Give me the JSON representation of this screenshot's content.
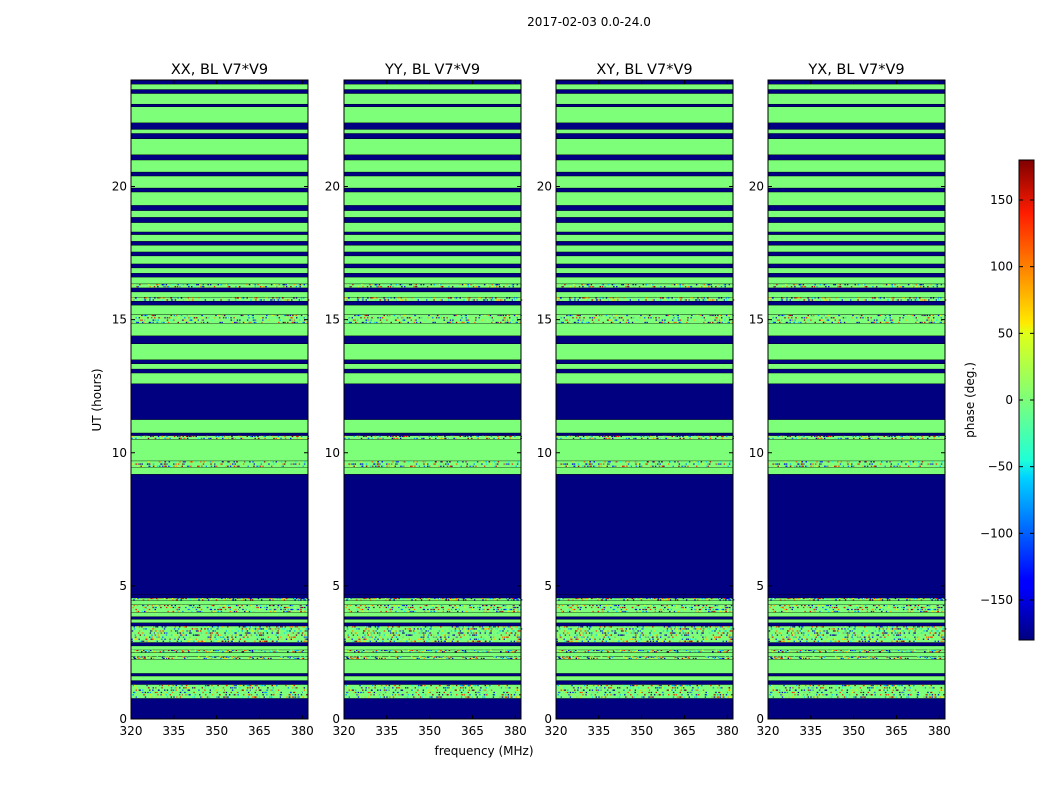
{
  "chart_data": {
    "type": "heatmap",
    "suptitle": "2017-02-03 0.0-24.0",
    "xlabel": "frequency (MHz)",
    "ylabel": "UT (hours)",
    "xlim": [
      320,
      382
    ],
    "ylim": [
      0,
      24
    ],
    "xticks": [
      "320",
      "335",
      "350",
      "365",
      "380"
    ],
    "yticks": [
      "0",
      "5",
      "10",
      "15",
      "20"
    ],
    "panels": [
      {
        "title": "XX, BL V7*V9"
      },
      {
        "title": "YY, BL V7*V9"
      },
      {
        "title": "XY, BL V7*V9"
      },
      {
        "title": "YX, BL V7*V9"
      }
    ],
    "colorbar": {
      "label": "phase (deg.)",
      "range": [
        -180,
        180
      ],
      "colormap": "jet",
      "ticks": [
        "150",
        "100",
        "50",
        "0",
        "−50",
        "−100",
        "−150"
      ]
    },
    "time_bands": [
      {
        "from": 0.0,
        "to": 0.78,
        "state": "flagged"
      },
      {
        "from": 0.78,
        "to": 1.3,
        "state": "noisy"
      },
      {
        "from": 1.3,
        "to": 1.45,
        "state": "flagged"
      },
      {
        "from": 1.45,
        "to": 1.62,
        "state": "zero"
      },
      {
        "from": 1.62,
        "to": 1.72,
        "state": "flagged"
      },
      {
        "from": 1.72,
        "to": 2.25,
        "state": "zero"
      },
      {
        "from": 2.25,
        "to": 2.35,
        "state": "noisy"
      },
      {
        "from": 2.35,
        "to": 2.5,
        "state": "zero"
      },
      {
        "from": 2.5,
        "to": 2.6,
        "state": "noisy"
      },
      {
        "from": 2.6,
        "to": 2.75,
        "state": "zero"
      },
      {
        "from": 2.75,
        "to": 2.88,
        "state": "flagged"
      },
      {
        "from": 2.88,
        "to": 3.5,
        "state": "noisy"
      },
      {
        "from": 3.5,
        "to": 3.62,
        "state": "flagged"
      },
      {
        "from": 3.62,
        "to": 3.75,
        "state": "zero"
      },
      {
        "from": 3.75,
        "to": 3.85,
        "state": "flagged"
      },
      {
        "from": 3.85,
        "to": 4.0,
        "state": "zero"
      },
      {
        "from": 4.0,
        "to": 4.3,
        "state": "noisy"
      },
      {
        "from": 4.3,
        "to": 4.45,
        "state": "zero"
      },
      {
        "from": 4.45,
        "to": 4.55,
        "state": "noisy"
      },
      {
        "from": 4.55,
        "to": 4.68,
        "state": "flagged"
      },
      {
        "from": 4.68,
        "to": 9.2,
        "state": "flagged"
      },
      {
        "from": 9.2,
        "to": 9.45,
        "state": "zero"
      },
      {
        "from": 9.45,
        "to": 9.7,
        "state": "noisy"
      },
      {
        "from": 9.7,
        "to": 10.5,
        "state": "zero"
      },
      {
        "from": 10.5,
        "to": 10.65,
        "state": "noisy"
      },
      {
        "from": 10.65,
        "to": 10.75,
        "state": "flagged"
      },
      {
        "from": 10.75,
        "to": 11.25,
        "state": "zero"
      },
      {
        "from": 11.25,
        "to": 12.6,
        "state": "flagged"
      },
      {
        "from": 12.6,
        "to": 13.0,
        "state": "zero"
      },
      {
        "from": 13.0,
        "to": 13.15,
        "state": "flagged"
      },
      {
        "from": 13.15,
        "to": 13.35,
        "state": "zero"
      },
      {
        "from": 13.35,
        "to": 13.5,
        "state": "flagged"
      },
      {
        "from": 13.5,
        "to": 14.1,
        "state": "zero"
      },
      {
        "from": 14.1,
        "to": 14.4,
        "state": "flagged"
      },
      {
        "from": 14.4,
        "to": 14.85,
        "state": "zero"
      },
      {
        "from": 14.85,
        "to": 15.2,
        "state": "noisy"
      },
      {
        "from": 15.2,
        "to": 15.55,
        "state": "zero"
      },
      {
        "from": 15.55,
        "to": 15.7,
        "state": "flagged"
      },
      {
        "from": 15.7,
        "to": 15.85,
        "state": "noisy"
      },
      {
        "from": 15.85,
        "to": 16.05,
        "state": "zero"
      },
      {
        "from": 16.05,
        "to": 16.2,
        "state": "flagged"
      },
      {
        "from": 16.2,
        "to": 16.35,
        "state": "noisy"
      },
      {
        "from": 16.35,
        "to": 16.6,
        "state": "zero"
      },
      {
        "from": 16.6,
        "to": 16.75,
        "state": "flagged"
      },
      {
        "from": 16.75,
        "to": 16.95,
        "state": "zero"
      },
      {
        "from": 16.95,
        "to": 17.1,
        "state": "flagged"
      },
      {
        "from": 17.1,
        "to": 17.4,
        "state": "zero"
      },
      {
        "from": 17.4,
        "to": 17.55,
        "state": "flagged"
      },
      {
        "from": 17.55,
        "to": 17.8,
        "state": "zero"
      },
      {
        "from": 17.8,
        "to": 17.95,
        "state": "flagged"
      },
      {
        "from": 17.95,
        "to": 18.2,
        "state": "zero"
      },
      {
        "from": 18.2,
        "to": 18.3,
        "state": "flagged"
      },
      {
        "from": 18.3,
        "to": 18.65,
        "state": "zero"
      },
      {
        "from": 18.65,
        "to": 18.85,
        "state": "flagged"
      },
      {
        "from": 18.85,
        "to": 19.1,
        "state": "zero"
      },
      {
        "from": 19.1,
        "to": 19.3,
        "state": "flagged"
      },
      {
        "from": 19.3,
        "to": 19.8,
        "state": "zero"
      },
      {
        "from": 19.8,
        "to": 19.95,
        "state": "flagged"
      },
      {
        "from": 19.95,
        "to": 20.4,
        "state": "zero"
      },
      {
        "from": 20.4,
        "to": 20.55,
        "state": "flagged"
      },
      {
        "from": 20.55,
        "to": 21.0,
        "state": "zero"
      },
      {
        "from": 21.0,
        "to": 21.2,
        "state": "flagged"
      },
      {
        "from": 21.2,
        "to": 21.8,
        "state": "zero"
      },
      {
        "from": 21.8,
        "to": 22.0,
        "state": "flagged"
      },
      {
        "from": 22.0,
        "to": 22.15,
        "state": "zero"
      },
      {
        "from": 22.15,
        "to": 22.4,
        "state": "flagged"
      },
      {
        "from": 22.4,
        "to": 23.0,
        "state": "zero"
      },
      {
        "from": 23.0,
        "to": 23.1,
        "state": "flagged"
      },
      {
        "from": 23.1,
        "to": 23.5,
        "state": "zero"
      },
      {
        "from": 23.5,
        "to": 23.65,
        "state": "flagged"
      },
      {
        "from": 23.65,
        "to": 23.85,
        "state": "zero"
      },
      {
        "from": 23.85,
        "to": 24.0,
        "state": "flagged"
      }
    ],
    "colors": {
      "flagged": "#000080",
      "zero_phase": "#7dff7a",
      "separator": "#000000"
    }
  }
}
